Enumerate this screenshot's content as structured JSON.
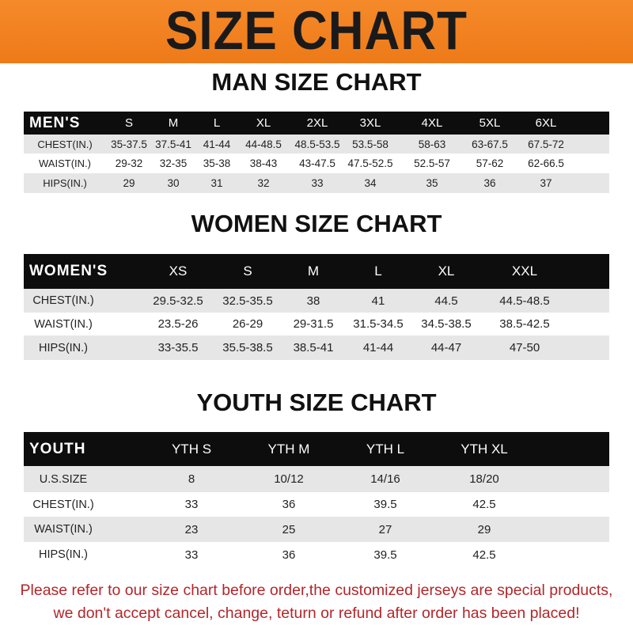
{
  "banner": {
    "title": "SIZE CHART",
    "color": "#f08020"
  },
  "men": {
    "title": "MAN SIZE CHART",
    "header": [
      "MEN'S",
      "S",
      "M",
      "L",
      "XL",
      "2XL",
      "3XL",
      "4XL",
      "5XL",
      "6XL"
    ],
    "rows": [
      [
        "CHEST(IN.)",
        "35-37.5",
        "37.5-41",
        "41-44",
        "44-48.5",
        "48.5-53.5",
        "53.5-58",
        "58-63",
        "63-67.5",
        "67.5-72"
      ],
      [
        "WAIST(IN.)",
        "29-32",
        "32-35",
        "35-38",
        "38-43",
        "43-47.5",
        "47.5-52.5",
        "52.5-57",
        "57-62",
        "62-66.5"
      ],
      [
        "HIPS(IN.)",
        "29",
        "30",
        "31",
        "32",
        "33",
        "34",
        "35",
        "36",
        "37"
      ]
    ]
  },
  "women": {
    "title": "WOMEN SIZE CHART",
    "header": [
      "WOMEN'S",
      "XS",
      "S",
      "M",
      "L",
      "XL",
      "XXL"
    ],
    "rows": [
      [
        "CHEST(IN.)",
        "29.5-32.5",
        "32.5-35.5",
        "38",
        "41",
        "44.5",
        "44.5-48.5"
      ],
      [
        "WAIST(IN.)",
        "23.5-26",
        "26-29",
        "29-31.5",
        "31.5-34.5",
        "34.5-38.5",
        "38.5-42.5"
      ],
      [
        "HIPS(IN.)",
        "33-35.5",
        "35.5-38.5",
        "38.5-41",
        "41-44",
        "44-47",
        "47-50"
      ]
    ]
  },
  "youth": {
    "title": "YOUTH SIZE CHART",
    "header": [
      "YOUTH",
      "YTH S",
      "YTH M",
      "YTH L",
      "YTH XL"
    ],
    "rows": [
      [
        "U.S.SIZE",
        "8",
        "10/12",
        "14/16",
        "18/20"
      ],
      [
        "CHEST(IN.)",
        "33",
        "36",
        "39.5",
        "42.5"
      ],
      [
        "WAIST(IN.)",
        "23",
        "25",
        "27",
        "29"
      ],
      [
        "HIPS(IN.)",
        "33",
        "36",
        "39.5",
        "42.5"
      ]
    ]
  },
  "notice": {
    "line1": "Please refer to our size chart before order,the customized jerseys are special products,",
    "line2": "we don't accept cancel, change, teturn or refund after order has been placed!",
    "color": "#b3262a"
  }
}
